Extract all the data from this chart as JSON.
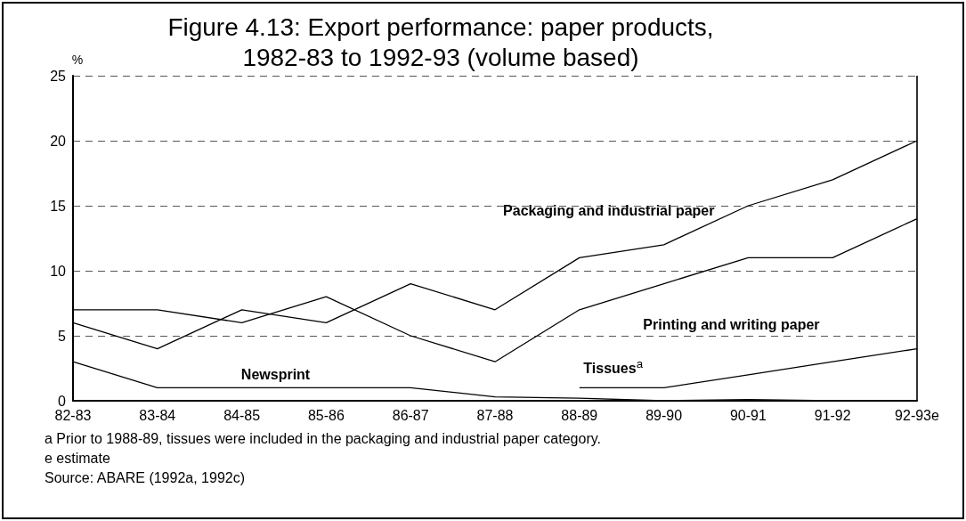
{
  "chart_data": {
    "type": "line",
    "title": "Figure 4.13: Export performance: paper products,\n1982-83 to 1992-93 (volume based)",
    "ylabel": "%",
    "categories": [
      "82-83",
      "83-84",
      "84-85",
      "85-86",
      "86-87",
      "87-88",
      "88-89",
      "89-90",
      "90-91",
      "91-92",
      "92-93e"
    ],
    "series": [
      {
        "name": "Packaging and industrial paper",
        "color": "#000000",
        "values": [
          6,
          4,
          7,
          6,
          9,
          7,
          11,
          12,
          15,
          17,
          20
        ]
      },
      {
        "name": "Printing and writing paper",
        "color": "#000000",
        "values": [
          7,
          7,
          6,
          8,
          5,
          3,
          7,
          9,
          11,
          11,
          14
        ]
      },
      {
        "name": "Tissues$^{a}$",
        "color": "#000000",
        "values": [
          null,
          null,
          null,
          null,
          null,
          null,
          1,
          1,
          2,
          3,
          4
        ]
      },
      {
        "name": "Newsprint",
        "color": "#000000",
        "values": [
          3,
          1,
          1,
          1,
          1,
          0.3,
          0.2,
          0,
          0.1,
          0,
          0
        ]
      }
    ],
    "ylim": [
      0,
      25
    ],
    "yticks": [
      0,
      5,
      10,
      15,
      20,
      25
    ],
    "grid": "y",
    "legend": false,
    "marker": "none",
    "line_style": "solid",
    "annotations": [
      "a Prior to 1988-89, tissues were included in the packaging and industrial paper category.",
      "e estimate",
      "Source: ABARE (1992a, 1992c)"
    ]
  }
}
